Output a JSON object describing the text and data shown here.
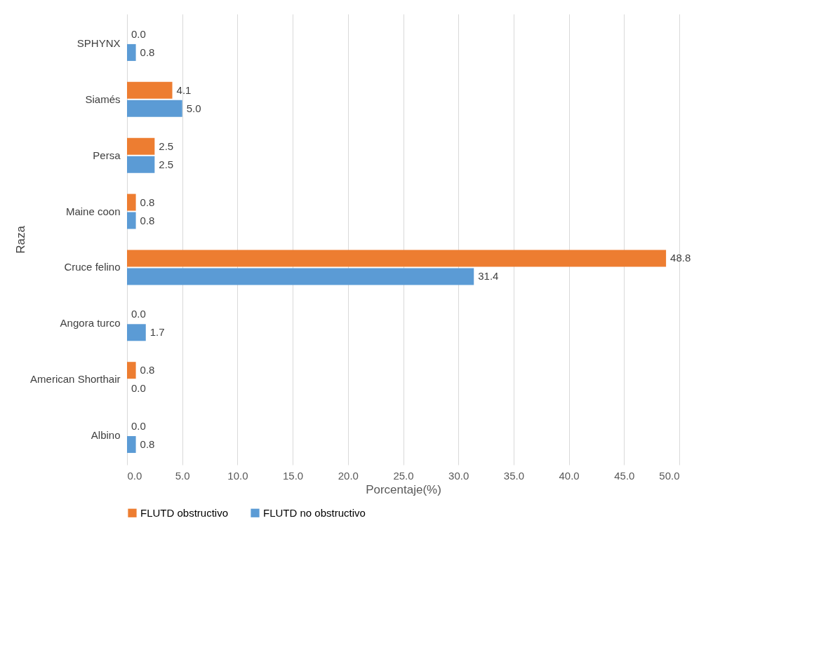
{
  "chart_data": {
    "type": "bar",
    "orientation": "horizontal",
    "xlabel": "Porcentaje(%)",
    "ylabel": "Raza",
    "categories": [
      "SPHYNX",
      "Siamés",
      "Persa",
      "Maine coon",
      "Cruce felino",
      "Angora turco",
      "American Shorthair",
      "Albino"
    ],
    "series": [
      {
        "name": "FLUTD obstructivo",
        "color": "#ed7d31",
        "values": [
          0.0,
          4.1,
          2.5,
          0.8,
          48.8,
          0.0,
          0.8,
          0.0
        ],
        "value_labels": [
          "0.0",
          "4.1",
          "2.5",
          "0.8",
          "48.8",
          "0.0",
          "0.8",
          "0.0"
        ]
      },
      {
        "name": "FLUTD no obstructivo",
        "color": "#5b9bd5",
        "values": [
          0.8,
          5.0,
          2.5,
          0.8,
          31.4,
          1.7,
          0.0,
          0.8
        ],
        "value_labels": [
          "0.8",
          "5.0",
          "2.5",
          "0.8",
          "31.4",
          "1.7",
          "0.0",
          "0.8"
        ]
      }
    ],
    "xlim": [
      0,
      50
    ],
    "xticks": [
      {
        "value": 0,
        "label": "0.0"
      },
      {
        "value": 5,
        "label": "5.0"
      },
      {
        "value": 10,
        "label": "10.0"
      },
      {
        "value": 15,
        "label": "15.0"
      },
      {
        "value": 20,
        "label": "20.0"
      },
      {
        "value": 25,
        "label": "25.0"
      },
      {
        "value": 30,
        "label": "30.0"
      },
      {
        "value": 35,
        "label": "35.0"
      },
      {
        "value": 40,
        "label": "40.0"
      },
      {
        "value": 45,
        "label": "45.0"
      },
      {
        "value": 50,
        "label": "50.0"
      }
    ],
    "grid": "x",
    "legend": "bottom"
  }
}
